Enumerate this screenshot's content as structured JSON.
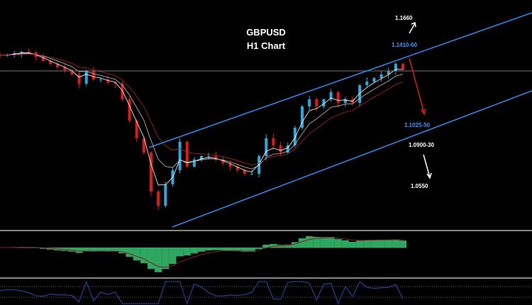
{
  "header": {
    "symbol": "GBPUSD",
    "timeframe": "H1 Chart"
  },
  "annotations": [
    {
      "text": "1.1660",
      "color": "#ffffff"
    },
    {
      "text": "1.1410-60",
      "color": "#3399ff"
    },
    {
      "text": "1.1025-50",
      "color": "#3399ff"
    },
    {
      "text": "1.0900-30",
      "color": "#ffffff"
    },
    {
      "text": "1.0550",
      "color": "#ffffff"
    }
  ],
  "colors": {
    "up_candle": "#2aa8e0",
    "down_candle": "#e01818",
    "channel": "#2a8cf0",
    "macd_hist": "#2ea860",
    "macd_signal": "#8b1a2a",
    "rsi": "#2a4ab0",
    "divider": "#888888"
  },
  "chart_data": {
    "type": "candlestick",
    "title": "GBPUSD H1 Chart",
    "closes": [
      1.1396,
      1.14,
      1.141,
      1.1419,
      1.1415,
      1.1387,
      1.136,
      1.1341,
      1.1319,
      1.13,
      1.1273,
      1.1213,
      1.1296,
      1.1241,
      1.1241,
      1.122,
      1.1213,
      1.1113,
      1.0976,
      1.0862,
      1.077,
      1.0519,
      1.0427,
      1.0565,
      1.0656,
      1.0839,
      1.0679,
      1.0725,
      1.0747,
      1.0747,
      1.0725,
      1.0702,
      1.0679,
      1.0656,
      1.0633,
      1.0633,
      1.0747,
      1.0862,
      1.0816,
      1.077,
      1.0816,
      1.093,
      1.1067,
      1.1113,
      1.1067,
      1.1113,
      1.1159,
      1.109,
      1.1113,
      1.109,
      1.1204,
      1.1227,
      1.125,
      1.1273,
      1.1296,
      1.1341,
      1.1305
    ],
    "horizontal_level": 1.1296,
    "channel": {
      "upper": [
        [
          1.084,
          "start"
        ],
        [
          1.146,
          "end"
        ]
      ],
      "lower": [
        [
          1.033,
          "start"
        ],
        [
          1.094,
          "end"
        ]
      ]
    },
    "projections": [
      {
        "direction": "up",
        "target": "1.1660"
      },
      {
        "direction": "down",
        "target": "1.1025-50"
      },
      {
        "direction": "down",
        "target": "1.0550"
      }
    ],
    "indicators": [
      "MACD histogram with signal",
      "RSI line"
    ]
  }
}
